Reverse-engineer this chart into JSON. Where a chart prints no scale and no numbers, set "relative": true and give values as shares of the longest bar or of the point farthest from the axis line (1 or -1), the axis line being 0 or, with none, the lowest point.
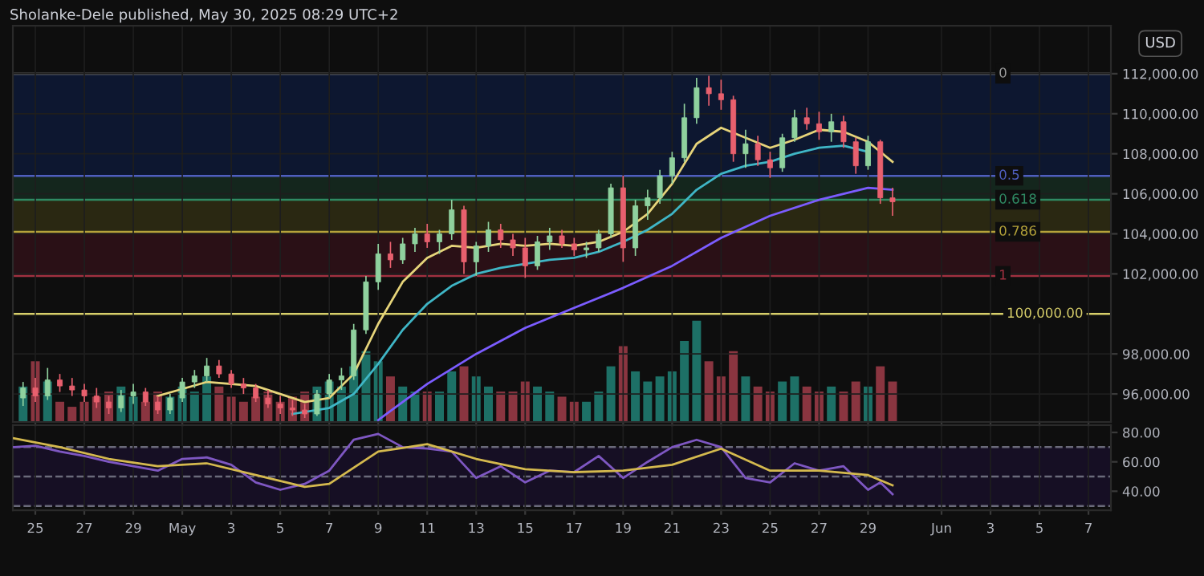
{
  "chart_data": [
    {
      "type": "candlestick",
      "title": "Sholanke-Dele published, May 30, 2025 08:29 UTC+2",
      "ylabel": "USD",
      "tick_labels": "y",
      "grid": true,
      "xlim": [
        "2025-04-24T02:00",
        "2025-06-07T22:00"
      ],
      "xticks": [
        {
          "value": "2025-04-25",
          "label": null
        },
        {
          "value": "2025-04-27",
          "label": null
        },
        {
          "value": "2025-04-29",
          "label": null
        },
        {
          "value": "2025-05-01",
          "label": null
        },
        {
          "value": "2025-05-03",
          "label": null
        },
        {
          "value": "2025-05-05",
          "label": null
        },
        {
          "value": "2025-05-07",
          "label": null
        },
        {
          "value": "2025-05-09",
          "label": null
        },
        {
          "value": "2025-05-11",
          "label": null
        },
        {
          "value": "2025-05-13",
          "label": null
        },
        {
          "value": "2025-05-15",
          "label": null
        },
        {
          "value": "2025-05-17",
          "label": null
        },
        {
          "value": "2025-05-19",
          "label": null
        },
        {
          "value": "2025-05-21",
          "label": null
        },
        {
          "value": "2025-05-23",
          "label": null
        },
        {
          "value": "2025-05-25",
          "label": null
        },
        {
          "value": "2025-05-27",
          "label": null
        },
        {
          "value": "2025-05-29",
          "label": null
        },
        {
          "value": "2025-06-01",
          "label": null
        },
        {
          "value": "2025-06-03",
          "label": null
        },
        {
          "value": "2025-06-05",
          "label": null
        },
        {
          "value": "2025-06-07",
          "label": null
        }
      ],
      "ylim": [
        94600,
        114400
      ],
      "yticks": [
        {
          "value": 96000,
          "label": "96,000.00"
        },
        {
          "value": 98000,
          "label": "98,000.00"
        },
        {
          "value": 102000,
          "label": "102,000.00"
        },
        {
          "value": 104000,
          "label": "104,000.00"
        },
        {
          "value": 106000,
          "label": "106,000.00"
        },
        {
          "value": 108000,
          "label": "108,000.00"
        },
        {
          "value": 110000,
          "label": "110,000.00"
        },
        {
          "value": 112000,
          "label": "112,000.00"
        }
      ],
      "x": [
        "2025-04-24T12:00",
        "2025-04-25T00:00",
        "2025-04-25T12:00",
        "2025-04-26T00:00",
        "2025-04-26T12:00",
        "2025-04-27T00:00",
        "2025-04-27T12:00",
        "2025-04-28T00:00",
        "2025-04-28T12:00",
        "2025-04-29T00:00",
        "2025-04-29T12:00",
        "2025-04-30T00:00",
        "2025-04-30T12:00",
        "2025-05-01T00:00",
        "2025-05-01T12:00",
        "2025-05-02T00:00",
        "2025-05-02T12:00",
        "2025-05-03T00:00",
        "2025-05-03T12:00",
        "2025-05-04T00:00",
        "2025-05-04T12:00",
        "2025-05-05T00:00",
        "2025-05-05T12:00",
        "2025-05-06T00:00",
        "2025-05-06T12:00",
        "2025-05-07T00:00",
        "2025-05-07T12:00",
        "2025-05-08T00:00",
        "2025-05-08T12:00",
        "2025-05-09T00:00",
        "2025-05-09T12:00",
        "2025-05-10T00:00",
        "2025-05-10T12:00",
        "2025-05-11T00:00",
        "2025-05-11T12:00",
        "2025-05-12T00:00",
        "2025-05-12T12:00",
        "2025-05-13T00:00",
        "2025-05-13T12:00",
        "2025-05-14T00:00",
        "2025-05-14T12:00",
        "2025-05-15T00:00",
        "2025-05-15T12:00",
        "2025-05-16T00:00",
        "2025-05-16T12:00",
        "2025-05-17T00:00",
        "2025-05-17T12:00",
        "2025-05-18T00:00",
        "2025-05-18T12:00",
        "2025-05-19T00:00",
        "2025-05-19T12:00",
        "2025-05-20T00:00",
        "2025-05-20T12:00",
        "2025-05-21T00:00",
        "2025-05-21T12:00",
        "2025-05-22T00:00",
        "2025-05-22T12:00",
        "2025-05-23T00:00",
        "2025-05-23T12:00",
        "2025-05-24T00:00",
        "2025-05-24T12:00",
        "2025-05-25T00:00",
        "2025-05-25T12:00",
        "2025-05-26T00:00",
        "2025-05-26T12:00",
        "2025-05-27T00:00",
        "2025-05-27T12:00",
        "2025-05-28T00:00",
        "2025-05-28T12:00",
        "2025-05-29T00:00",
        "2025-05-29T12:00",
        "2025-05-30T00:00"
      ],
      "ohlc": [
        [
          95800,
          96600,
          95400,
          96300
        ],
        [
          96300,
          96800,
          95600,
          95900
        ],
        [
          95900,
          97300,
          95700,
          96700
        ],
        [
          96700,
          97000,
          96100,
          96400
        ],
        [
          96400,
          96800,
          95900,
          96200
        ],
        [
          96200,
          96500,
          95600,
          95900
        ],
        [
          95900,
          96300,
          95300,
          95600
        ],
        [
          95600,
          95900,
          95000,
          95300
        ],
        [
          95300,
          96200,
          95100,
          95900
        ],
        [
          95900,
          96500,
          95500,
          96100
        ],
        [
          96100,
          96300,
          95400,
          95600
        ],
        [
          95600,
          95900,
          95000,
          95200
        ],
        [
          95200,
          96000,
          95000,
          95800
        ],
        [
          95800,
          96800,
          95600,
          96600
        ],
        [
          96600,
          97200,
          96300,
          96900
        ],
        [
          96900,
          97800,
          96600,
          97400
        ],
        [
          97400,
          97700,
          96800,
          97000
        ],
        [
          97000,
          97200,
          96300,
          96500
        ],
        [
          96500,
          96800,
          96000,
          96300
        ],
        [
          96300,
          96500,
          95600,
          95800
        ],
        [
          95800,
          96200,
          95300,
          95500
        ],
        [
          95500,
          95900,
          95000,
          95300
        ],
        [
          95300,
          95700,
          94900,
          95200
        ],
        [
          95200,
          95500,
          94800,
          95000
        ],
        [
          95000,
          96200,
          94900,
          96000
        ],
        [
          96000,
          97000,
          95800,
          96700
        ],
        [
          96700,
          97300,
          96200,
          96900
        ],
        [
          96900,
          99500,
          96700,
          99200
        ],
        [
          99200,
          101900,
          99000,
          101600
        ],
        [
          101600,
          103500,
          101200,
          103000
        ],
        [
          103000,
          103600,
          102300,
          102700
        ],
        [
          102700,
          103800,
          102500,
          103500
        ],
        [
          103500,
          104300,
          103100,
          104000
        ],
        [
          104000,
          104500,
          103300,
          103600
        ],
        [
          103600,
          104200,
          103000,
          104000
        ],
        [
          104000,
          105700,
          103700,
          105200
        ],
        [
          105200,
          105400,
          102000,
          102600
        ],
        [
          102600,
          103600,
          101900,
          103400
        ],
        [
          103400,
          104600,
          103100,
          104200
        ],
        [
          104200,
          104500,
          103300,
          103700
        ],
        [
          103700,
          104000,
          102900,
          103300
        ],
        [
          103300,
          103800,
          101800,
          102400
        ],
        [
          102400,
          103900,
          102200,
          103600
        ],
        [
          103600,
          104300,
          103200,
          103900
        ],
        [
          103900,
          104200,
          103300,
          103500
        ],
        [
          103500,
          103800,
          102900,
          103200
        ],
        [
          103200,
          103600,
          102800,
          103300
        ],
        [
          103300,
          104200,
          103100,
          104000
        ],
        [
          104000,
          106500,
          103800,
          106300
        ],
        [
          106300,
          106900,
          102600,
          103300
        ],
        [
          103300,
          105700,
          102900,
          105400
        ],
        [
          105400,
          106200,
          104700,
          105800
        ],
        [
          105800,
          107200,
          105500,
          106900
        ],
        [
          106900,
          108100,
          106500,
          107800
        ],
        [
          107800,
          110500,
          107600,
          109800
        ],
        [
          109800,
          111800,
          109500,
          111300
        ],
        [
          111300,
          111900,
          110400,
          111000
        ],
        [
          111000,
          111700,
          110200,
          110700
        ],
        [
          110700,
          110900,
          107600,
          108000
        ],
        [
          108000,
          109200,
          107300,
          108500
        ],
        [
          108500,
          108900,
          107400,
          107700
        ],
        [
          107700,
          108100,
          106800,
          107300
        ],
        [
          107300,
          109000,
          107100,
          108800
        ],
        [
          108800,
          110200,
          108600,
          109800
        ],
        [
          109800,
          110300,
          109200,
          109500
        ],
        [
          109500,
          110100,
          108700,
          109100
        ],
        [
          109100,
          110000,
          108600,
          109600
        ],
        [
          109600,
          109900,
          108300,
          108600
        ],
        [
          108600,
          108800,
          107000,
          107400
        ],
        [
          107400,
          108900,
          107200,
          108600
        ],
        [
          108600,
          108700,
          105500,
          105800
        ],
        [
          105800,
          106300,
          104900,
          105600
        ]
      ],
      "colors": [
        "#8fd19e",
        "#e8606e",
        "#8fd19e",
        "#e8606e",
        "#e8606e",
        "#e8606e",
        "#e8606e",
        "#e8606e",
        "#8fd19e",
        "#8fd19e",
        "#e8606e",
        "#e8606e",
        "#8fd19e",
        "#8fd19e",
        "#8fd19e",
        "#8fd19e",
        "#e8606e",
        "#e8606e",
        "#e8606e",
        "#e8606e",
        "#e8606e",
        "#e8606e",
        "#e8606e",
        "#e8606e",
        "#8fd19e",
        "#8fd19e",
        "#8fd19e",
        "#8fd19e",
        "#8fd19e",
        "#8fd19e",
        "#e8606e",
        "#8fd19e",
        "#8fd19e",
        "#e8606e",
        "#8fd19e",
        "#8fd19e",
        "#e8606e",
        "#8fd19e",
        "#8fd19e",
        "#e8606e",
        "#e8606e",
        "#e8606e",
        "#8fd19e",
        "#8fd19e",
        "#e8606e",
        "#e8606e",
        "#8fd19e",
        "#8fd19e",
        "#8fd19e",
        "#e8606e",
        "#8fd19e",
        "#8fd19e",
        "#8fd19e",
        "#8fd19e",
        "#8fd19e",
        "#8fd19e",
        "#e8606e",
        "#e8606e",
        "#e8606e",
        "#8fd19e",
        "#e8606e",
        "#e8606e",
        "#8fd19e",
        "#8fd19e",
        "#e8606e",
        "#e8606e",
        "#8fd19e",
        "#e8606e",
        "#e8606e",
        "#8fd19e",
        "#e8606e",
        "#e8606e"
      ],
      "series": [
        {
          "type": "line",
          "color": "#e6d47a",
          "x": [
            "2025-04-30",
            "2025-05-02",
            "2025-05-04",
            "2025-05-06",
            "2025-05-07",
            "2025-05-08",
            "2025-05-09",
            "2025-05-10",
            "2025-05-11",
            "2025-05-12",
            "2025-05-13",
            "2025-05-14",
            "2025-05-15",
            "2025-05-16",
            "2025-05-17",
            "2025-05-18",
            "2025-05-19",
            "2025-05-20",
            "2025-05-21",
            "2025-05-22",
            "2025-05-23",
            "2025-05-24",
            "2025-05-25",
            "2025-05-26",
            "2025-05-27",
            "2025-05-28",
            "2025-05-29",
            "2025-05-30"
          ],
          "values": [
            95900,
            96600,
            96400,
            95600,
            95800,
            97000,
            99500,
            101600,
            102800,
            103400,
            103300,
            103500,
            103400,
            103500,
            103400,
            103600,
            104100,
            105000,
            106500,
            108500,
            109300,
            108800,
            108300,
            108700,
            109200,
            109100,
            108600,
            107600
          ]
        },
        {
          "type": "line",
          "color": "#3fb6c6",
          "x": [
            "2025-05-05T12:00",
            "2025-05-07",
            "2025-05-08",
            "2025-05-09",
            "2025-05-10",
            "2025-05-11",
            "2025-05-12",
            "2025-05-13",
            "2025-05-14",
            "2025-05-15",
            "2025-05-16",
            "2025-05-17",
            "2025-05-18",
            "2025-05-19",
            "2025-05-20",
            "2025-05-21",
            "2025-05-22",
            "2025-05-23",
            "2025-05-24",
            "2025-05-25",
            "2025-05-26",
            "2025-05-27",
            "2025-05-28",
            "2025-05-29"
          ],
          "values": [
            95000,
            95300,
            96000,
            97500,
            99200,
            100500,
            101400,
            102000,
            102300,
            102500,
            102700,
            102800,
            103100,
            103600,
            104200,
            105000,
            106200,
            107000,
            107400,
            107600,
            108000,
            108300,
            108400,
            108100
          ]
        },
        {
          "type": "line",
          "color": "#7b5cff",
          "x": [
            "2025-05-09",
            "2025-05-11",
            "2025-05-13",
            "2025-05-15",
            "2025-05-17",
            "2025-05-19",
            "2025-05-21",
            "2025-05-23",
            "2025-05-25",
            "2025-05-27",
            "2025-05-29",
            "2025-05-30"
          ],
          "values": [
            94700,
            96500,
            98000,
            99300,
            100300,
            101300,
            102400,
            103800,
            104900,
            105700,
            106300,
            106200
          ]
        }
      ],
      "ref_lines": [
        {
          "axis": "y",
          "value": 100000,
          "label": "100,000.00",
          "color": "#d8cf6a",
          "line_style": "solid"
        },
        {
          "axis": "y",
          "value": 112000,
          "color": "#9e9e9e",
          "line_style": "solid"
        },
        {
          "axis": "y",
          "value": 106900,
          "color": "#4f5fbf",
          "line_style": "solid"
        },
        {
          "axis": "y",
          "value": 105700,
          "color": "#2f8a63",
          "line_style": "solid"
        },
        {
          "axis": "y",
          "value": 104100,
          "color": "#b5a33a",
          "line_style": "solid"
        },
        {
          "axis": "y",
          "value": 101900,
          "color": "#a03040",
          "line_style": "solid"
        }
      ],
      "annotations": [
        {
          "text": "0",
          "x": "2025-06-03T08:00",
          "y": 112000
        },
        {
          "text": "0.5",
          "x": "2025-06-03T08:00",
          "y": 106900
        },
        {
          "text": "0.618",
          "x": "2025-06-03T08:00",
          "y": 105700
        },
        {
          "text": "0.786",
          "x": "2025-06-03T08:00",
          "y": 104100
        },
        {
          "text": "1",
          "x": "2025-06-03T08:00",
          "y": 101900
        }
      ],
      "bands": [
        {
          "axis": "y",
          "from": 106900,
          "to": 112000,
          "color": "#0d1730"
        },
        {
          "axis": "y",
          "from": 105700,
          "to": 106900,
          "color": "#14261d"
        },
        {
          "axis": "y",
          "from": 104100,
          "to": 105700,
          "color": "#2a2812"
        },
        {
          "axis": "y",
          "from": 101900,
          "to": 104100,
          "color": "#2a1016"
        }
      ]
    },
    {
      "type": "bar",
      "relative": true,
      "tick_labels": false,
      "xlim": [
        "2025-04-24T02:00",
        "2025-06-07T22:00"
      ],
      "x": [
        "2025-04-24T12:00",
        "2025-04-25T00:00",
        "2025-04-25T12:00",
        "2025-04-26T00:00",
        "2025-04-26T12:00",
        "2025-04-27T00:00",
        "2025-04-27T12:00",
        "2025-04-28T00:00",
        "2025-04-28T12:00",
        "2025-04-29T00:00",
        "2025-04-29T12:00",
        "2025-04-30T00:00",
        "2025-04-30T12:00",
        "2025-05-01T00:00",
        "2025-05-01T12:00",
        "2025-05-02T00:00",
        "2025-05-02T12:00",
        "2025-05-03T00:00",
        "2025-05-03T12:00",
        "2025-05-04T00:00",
        "2025-05-04T12:00",
        "2025-05-05T00:00",
        "2025-05-05T12:00",
        "2025-05-06T00:00",
        "2025-05-06T12:00",
        "2025-05-07T00:00",
        "2025-05-07T12:00",
        "2025-05-08T00:00",
        "2025-05-08T12:00",
        "2025-05-09T00:00",
        "2025-05-09T12:00",
        "2025-05-10T00:00",
        "2025-05-10T12:00",
        "2025-05-11T00:00",
        "2025-05-11T12:00",
        "2025-05-12T00:00",
        "2025-05-12T12:00",
        "2025-05-13T00:00",
        "2025-05-13T12:00",
        "2025-05-14T00:00",
        "2025-05-14T12:00",
        "2025-05-15T00:00",
        "2025-05-15T12:00",
        "2025-05-16T00:00",
        "2025-05-16T12:00",
        "2025-05-17T00:00",
        "2025-05-17T12:00",
        "2025-05-18T00:00",
        "2025-05-18T12:00",
        "2025-05-19T00:00",
        "2025-05-19T12:00",
        "2025-05-20T00:00",
        "2025-05-20T12:00",
        "2025-05-21T00:00",
        "2025-05-21T12:00",
        "2025-05-22T00:00",
        "2025-05-22T12:00",
        "2025-05-23T00:00",
        "2025-05-23T12:00",
        "2025-05-24T00:00",
        "2025-05-24T12:00",
        "2025-05-25T00:00",
        "2025-05-25T12:00",
        "2025-05-26T00:00",
        "2025-05-26T12:00",
        "2025-05-27T00:00",
        "2025-05-27T12:00",
        "2025-05-28T00:00",
        "2025-05-28T12:00",
        "2025-05-29T00:00",
        "2025-05-29T12:00",
        "2025-05-30T00:00"
      ],
      "values": [
        0.35,
        0.6,
        0.4,
        0.2,
        0.15,
        0.2,
        0.25,
        0.3,
        0.35,
        0.25,
        0.2,
        0.3,
        0.25,
        0.35,
        0.3,
        0.45,
        0.35,
        0.25,
        0.2,
        0.25,
        0.3,
        0.2,
        0.25,
        0.3,
        0.35,
        0.4,
        0.35,
        0.55,
        0.7,
        0.6,
        0.45,
        0.35,
        0.3,
        0.3,
        0.3,
        0.5,
        0.55,
        0.45,
        0.35,
        0.3,
        0.3,
        0.4,
        0.35,
        0.3,
        0.25,
        0.2,
        0.2,
        0.3,
        0.55,
        0.75,
        0.5,
        0.4,
        0.45,
        0.5,
        0.8,
        1.0,
        0.6,
        0.45,
        0.7,
        0.45,
        0.35,
        0.3,
        0.4,
        0.45,
        0.35,
        0.3,
        0.35,
        0.3,
        0.4,
        0.35,
        0.55,
        0.4
      ],
      "colors": [
        "#1d7066",
        "#8a3540",
        "#1d7066",
        "#8a3540",
        "#8a3540",
        "#8a3540",
        "#8a3540",
        "#8a3540",
        "#1d7066",
        "#1d7066",
        "#8a3540",
        "#8a3540",
        "#1d7066",
        "#1d7066",
        "#1d7066",
        "#1d7066",
        "#8a3540",
        "#8a3540",
        "#8a3540",
        "#8a3540",
        "#8a3540",
        "#8a3540",
        "#8a3540",
        "#8a3540",
        "#1d7066",
        "#1d7066",
        "#1d7066",
        "#1d7066",
        "#1d7066",
        "#1d7066",
        "#8a3540",
        "#1d7066",
        "#1d7066",
        "#8a3540",
        "#1d7066",
        "#1d7066",
        "#8a3540",
        "#1d7066",
        "#1d7066",
        "#8a3540",
        "#8a3540",
        "#8a3540",
        "#1d7066",
        "#1d7066",
        "#8a3540",
        "#8a3540",
        "#1d7066",
        "#1d7066",
        "#1d7066",
        "#8a3540",
        "#1d7066",
        "#1d7066",
        "#1d7066",
        "#1d7066",
        "#1d7066",
        "#1d7066",
        "#8a3540",
        "#8a3540",
        "#8a3540",
        "#1d7066",
        "#8a3540",
        "#8a3540",
        "#1d7066",
        "#1d7066",
        "#8a3540",
        "#8a3540",
        "#1d7066",
        "#8a3540",
        "#8a3540",
        "#1d7066",
        "#8a3540",
        "#8a3540"
      ]
    },
    {
      "type": "line",
      "grid": "x",
      "xlim": [
        "2025-04-24T02:00",
        "2025-06-07T22:00"
      ],
      "xticks": [
        {
          "value": "2025-04-25",
          "label": "25"
        },
        {
          "value": "2025-04-27",
          "label": "27"
        },
        {
          "value": "2025-04-29",
          "label": "29"
        },
        {
          "value": "2025-05-01",
          "label": "May"
        },
        {
          "value": "2025-05-03",
          "label": "3"
        },
        {
          "value": "2025-05-05",
          "label": "5"
        },
        {
          "value": "2025-05-07",
          "label": "7"
        },
        {
          "value": "2025-05-09",
          "label": "9"
        },
        {
          "value": "2025-05-11",
          "label": "11"
        },
        {
          "value": "2025-05-13",
          "label": "13"
        },
        {
          "value": "2025-05-15",
          "label": "15"
        },
        {
          "value": "2025-05-17",
          "label": "17"
        },
        {
          "value": "2025-05-19",
          "label": "19"
        },
        {
          "value": "2025-05-21",
          "label": "21"
        },
        {
          "value": "2025-05-23",
          "label": "23"
        },
        {
          "value": "2025-05-25",
          "label": "25"
        },
        {
          "value": "2025-05-27",
          "label": "27"
        },
        {
          "value": "2025-05-29",
          "label": "29"
        },
        {
          "value": "2025-06-01",
          "label": "Jun"
        },
        {
          "value": "2025-06-03",
          "label": "3"
        },
        {
          "value": "2025-06-05",
          "label": "5"
        },
        {
          "value": "2025-06-07",
          "label": "7"
        }
      ],
      "ylim": [
        27,
        85
      ],
      "yticks": [
        {
          "value": 40,
          "label": "40.00"
        },
        {
          "value": 60,
          "label": "60.00"
        },
        {
          "value": 80,
          "label": "80.00"
        }
      ],
      "series": [
        {
          "color": "#7e57c2",
          "x": [
            "2025-04-24T03:00",
            "2025-04-25",
            "2025-04-26",
            "2025-04-27",
            "2025-04-28",
            "2025-04-29",
            "2025-04-30",
            "2025-05-01",
            "2025-05-02",
            "2025-05-03",
            "2025-05-04",
            "2025-05-05",
            "2025-05-06",
            "2025-05-07",
            "2025-05-08",
            "2025-05-09",
            "2025-05-10",
            "2025-05-11",
            "2025-05-12",
            "2025-05-13",
            "2025-05-14",
            "2025-05-15",
            "2025-05-16",
            "2025-05-17",
            "2025-05-18",
            "2025-05-19",
            "2025-05-20",
            "2025-05-21",
            "2025-05-22",
            "2025-05-23",
            "2025-05-24",
            "2025-05-25",
            "2025-05-26",
            "2025-05-27",
            "2025-05-28",
            "2025-05-29",
            "2025-05-29T12:00",
            "2025-05-30"
          ],
          "values": [
            70,
            71,
            67,
            64,
            60,
            57,
            54,
            62,
            63,
            58,
            46,
            41,
            45,
            54,
            75,
            79,
            70,
            69,
            67,
            49,
            57,
            46,
            54,
            53,
            64,
            49,
            60,
            70,
            75,
            70,
            49,
            46,
            59,
            54,
            57,
            41,
            46,
            38
          ]
        },
        {
          "color": "#d4b94e",
          "x": [
            "2025-04-24T03:00",
            "2025-04-26",
            "2025-04-28",
            "2025-04-30",
            "2025-05-02",
            "2025-05-04",
            "2025-05-06",
            "2025-05-07",
            "2025-05-09",
            "2025-05-11",
            "2025-05-13",
            "2025-05-15",
            "2025-05-17",
            "2025-05-19",
            "2025-05-21",
            "2025-05-23",
            "2025-05-25",
            "2025-05-27",
            "2025-05-29",
            "2025-05-30"
          ],
          "values": [
            76,
            70,
            62,
            57,
            59,
            51,
            43,
            45,
            67,
            72,
            62,
            55,
            53,
            54,
            58,
            69,
            54,
            54,
            51,
            44
          ]
        }
      ],
      "ref_lines": [
        {
          "axis": "y",
          "value": 70,
          "color": "#6a6a7a",
          "line_style": "dashed"
        },
        {
          "axis": "y",
          "value": 50,
          "color": "#6a6a7a",
          "line_style": "dashed"
        },
        {
          "axis": "y",
          "value": 30,
          "color": "#6a6a7a",
          "line_style": "dashed"
        }
      ],
      "bands": [
        {
          "axis": "y",
          "from": 30,
          "to": 70,
          "color": "#160f24"
        }
      ]
    }
  ]
}
